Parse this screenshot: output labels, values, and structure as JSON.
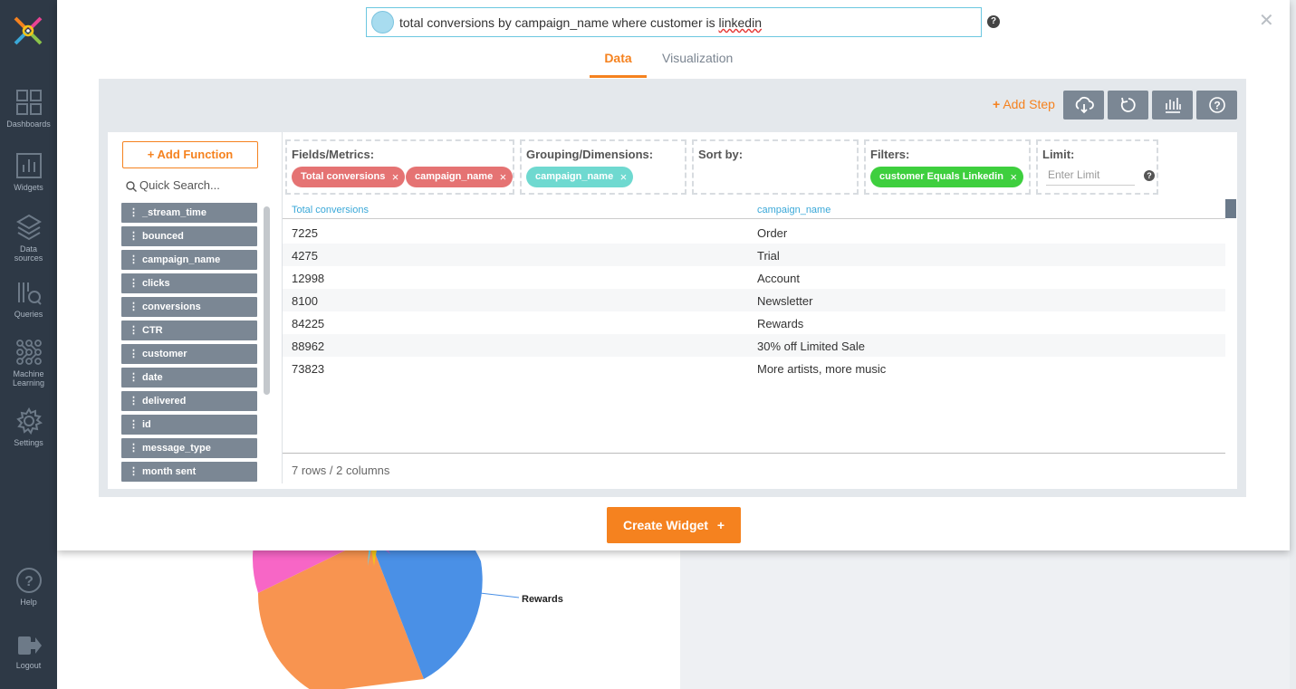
{
  "nav": {
    "items": [
      {
        "label": "Dashboards",
        "icon": "dashboards-icon"
      },
      {
        "label": "Widgets",
        "icon": "widgets-icon"
      },
      {
        "label": "Data sources",
        "icon": "data-sources-icon"
      },
      {
        "label": "Queries",
        "icon": "queries-icon"
      },
      {
        "label": "Machine Learning",
        "icon": "machine-learning-icon"
      },
      {
        "label": "Settings",
        "icon": "settings-icon"
      }
    ],
    "help_label": "Help",
    "logout_label": "Logout"
  },
  "query": {
    "text_before": "total conversions by campaign_name where customer is ",
    "text_underlined": "linkedin"
  },
  "tabs": {
    "data": "Data",
    "visualization": "Visualization"
  },
  "toolbar": {
    "add_step": "Add Step",
    "buttons": [
      "cloud-download-icon",
      "refresh-icon",
      "chart-settings-icon",
      "help-icon"
    ]
  },
  "sidebar": {
    "add_function": "Add Function",
    "quick_search_placeholder": "Quick Search...",
    "fields": [
      "_stream_time",
      "bounced",
      "campaign_name",
      "clicks",
      "conversions",
      "CTR",
      "customer",
      "date",
      "delivered",
      "id",
      "message_type",
      "month sent"
    ]
  },
  "dropzones": {
    "fields": {
      "title": "Fields/Metrics:",
      "pills": [
        "Total conversions",
        "campaign_name"
      ]
    },
    "grouping": {
      "title": "Grouping/Dimensions:",
      "pills": [
        "campaign_name"
      ]
    },
    "sort": {
      "title": "Sort by:"
    },
    "filters": {
      "title": "Filters:",
      "pills": [
        "customer Equals Linkedin"
      ]
    },
    "limit": {
      "title": "Limit:",
      "placeholder": "Enter Limit"
    }
  },
  "table": {
    "columns": [
      "Total conversions",
      "campaign_name"
    ],
    "rows": [
      [
        "7225",
        "Order"
      ],
      [
        "4275",
        "Trial"
      ],
      [
        "12998",
        "Account"
      ],
      [
        "8100",
        "Newsletter"
      ],
      [
        "84225",
        "Rewards"
      ],
      [
        "88962",
        "30% off Limited Sale"
      ],
      [
        "73823",
        "More artists, more music"
      ]
    ],
    "summary": "7 rows / 2 columns"
  },
  "create_widget": "Create Widget",
  "background": {
    "pie_label": "Rewards"
  },
  "colors": {
    "accent": "#f5821f",
    "nav_bg": "#2e3946",
    "pill_red": "#e57373",
    "pill_teal": "#6fd9d0",
    "pill_green": "#3ecf3e"
  }
}
